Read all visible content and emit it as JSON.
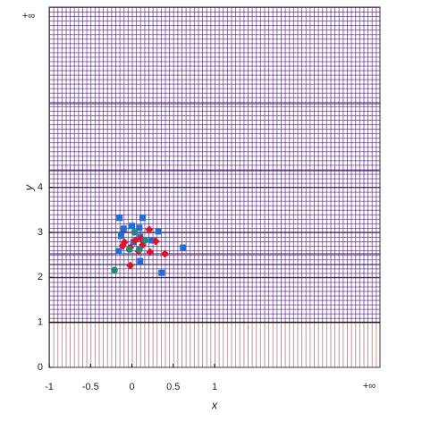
{
  "chart_data": {
    "type": "scatter",
    "x_label": "x",
    "y_label": "y",
    "x_end_label": "+∞",
    "y_end_label": "+∞",
    "xlim": [
      -1,
      3
    ],
    "ylim": [
      0,
      8
    ],
    "xticks": [
      -1,
      -0.5,
      0,
      0.5,
      1
    ],
    "yticks": [
      0,
      1,
      2,
      3,
      4
    ],
    "grid": true,
    "series": [
      {
        "marker": "square",
        "color": "#1f6fd6",
        "x": [
          -0.15,
          0.13,
          -0.1,
          0.0,
          0.09,
          0.32,
          -0.13,
          0.1,
          -0.16,
          0.62,
          0.36,
          0.1,
          0.24,
          0.02
        ],
        "values": [
          3.32,
          3.32,
          3.08,
          3.14,
          3.1,
          3.02,
          2.92,
          2.9,
          2.58,
          2.66,
          2.1,
          2.36,
          2.82,
          2.78
        ]
      },
      {
        "marker": "diamond",
        "color": "#e0102a",
        "x": [
          -0.09,
          -0.02,
          0.04,
          0.21,
          0.13,
          0.29,
          0.22,
          0.4,
          -0.02,
          -0.11,
          0.08,
          0.11
        ],
        "values": [
          2.78,
          2.66,
          2.82,
          3.06,
          2.72,
          2.8,
          2.56,
          2.52,
          2.26,
          2.7,
          2.58,
          2.86
        ]
      },
      {
        "marker": "circle",
        "color": "#1f8a78",
        "x": [
          -0.21,
          0.03,
          0.16,
          -0.03,
          0.09
        ],
        "values": [
          2.16,
          3.0,
          2.82,
          2.62,
          2.62
        ]
      }
    ]
  }
}
